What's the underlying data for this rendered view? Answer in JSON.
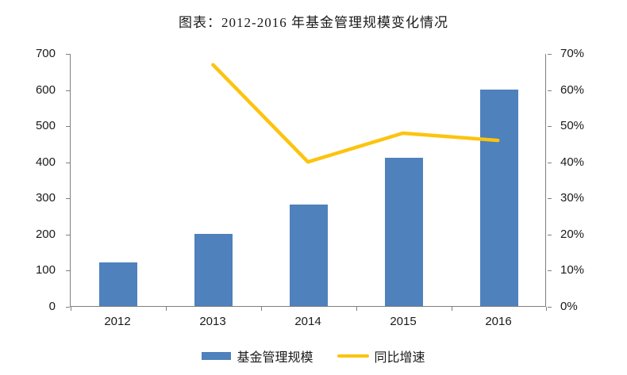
{
  "title": "图表：2012-2016 年基金管理规模变化情况",
  "colors": {
    "bar": "#4f81bd",
    "line": "#fdc30e",
    "axis": "#7f7f7f",
    "text": "#1a1a1a"
  },
  "chart_data": {
    "type": "bar",
    "subtype": "bar+line-combo",
    "title": "图表：2012-2016 年基金管理规模变化情况",
    "categories": [
      "2012",
      "2013",
      "2014",
      "2015",
      "2016"
    ],
    "series": [
      {
        "name": "基金管理规模",
        "type": "bar",
        "axis": "left",
        "values": [
          120,
          200,
          280,
          410,
          600
        ]
      },
      {
        "name": "同比增速",
        "type": "line",
        "axis": "right",
        "unit": "%",
        "values": [
          null,
          67,
          40,
          48,
          46
        ]
      }
    ],
    "left_axis": {
      "min": 0,
      "max": 700,
      "step": 100,
      "ticks": [
        "700",
        "600",
        "500",
        "400",
        "300",
        "200",
        "100",
        "0"
      ]
    },
    "right_axis": {
      "min": 0,
      "max": 70,
      "step": 10,
      "ticks": [
        "70%",
        "60%",
        "50%",
        "40%",
        "30%",
        "20%",
        "10%",
        "0%"
      ]
    },
    "grid": false,
    "legend_position": "bottom"
  },
  "legend": {
    "items": [
      {
        "label": "基金管理规模",
        "swatch": "bar"
      },
      {
        "label": "同比增速",
        "swatch": "line"
      }
    ]
  }
}
